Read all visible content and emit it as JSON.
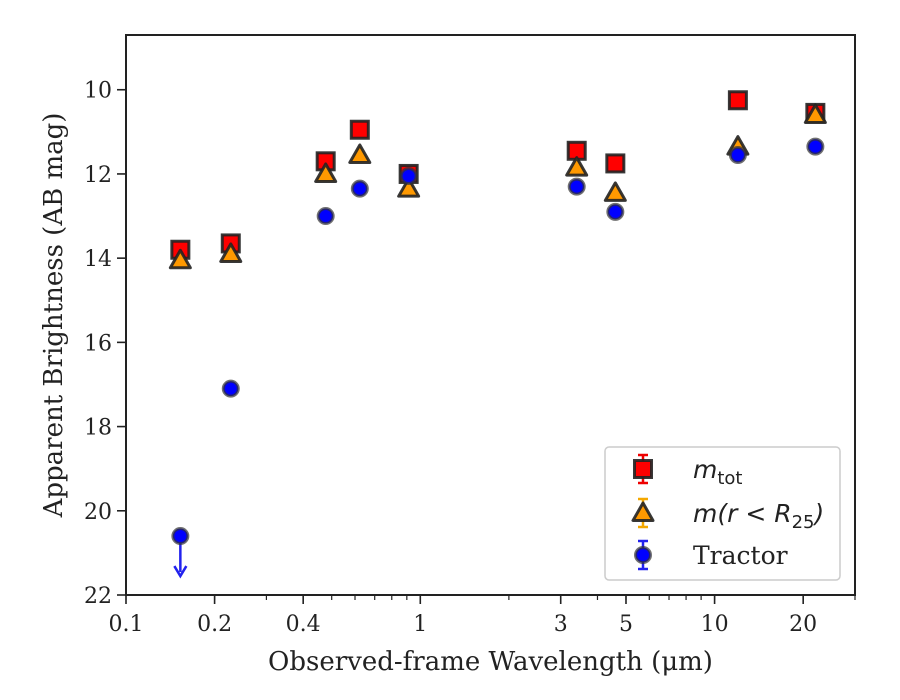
{
  "chart_data": {
    "type": "scatter",
    "xlabel": "Observed-frame Wavelength (μm)",
    "ylabel": "Apparent Brightness (AB mag)",
    "xscale": "log",
    "xlim": [
      0.1,
      30
    ],
    "ylim": [
      22,
      8.7
    ],
    "y_inverted": true,
    "grid": false,
    "legend_position": "bottom-right",
    "x_tick_labels": [
      "0.1",
      "0.2",
      "0.4",
      "1",
      "3",
      "5",
      "10",
      "20"
    ],
    "x_ticks": [
      0.1,
      0.2,
      0.4,
      1,
      3,
      5,
      10,
      20
    ],
    "y_ticks": [
      10,
      12,
      14,
      16,
      18,
      20,
      22
    ],
    "y_tick_labels": [
      "10",
      "12",
      "14",
      "16",
      "18",
      "20",
      "22"
    ],
    "series": [
      {
        "key": "mtot",
        "legend_label": "m_tot",
        "legend_math_base": "m",
        "legend_math_sub": "tot",
        "marker": "square",
        "color": "#ff0000",
        "x": [
          0.153,
          0.227,
          0.477,
          0.623,
          0.913,
          3.4,
          4.6,
          12.0,
          22.0
        ],
        "y": [
          13.8,
          13.65,
          11.7,
          10.95,
          12.0,
          11.45,
          11.75,
          10.25,
          10.55
        ]
      },
      {
        "key": "mr25",
        "legend_label": "m(r < R25)",
        "legend_math_base": "m(r < R",
        "legend_math_sub": "25",
        "legend_math_tail": ")",
        "marker": "triangle",
        "color": "#ff9900",
        "x": [
          0.153,
          0.227,
          0.477,
          0.623,
          0.913,
          3.4,
          4.6,
          12.0,
          22.0
        ],
        "y": [
          14.05,
          13.9,
          12.0,
          11.55,
          12.35,
          11.85,
          12.45,
          11.35,
          10.6
        ]
      },
      {
        "key": "tractor",
        "legend_label": "Tractor",
        "marker": "circle",
        "color": "#0000ff",
        "x": [
          0.153,
          0.227,
          0.477,
          0.623,
          0.913,
          3.4,
          4.6,
          12.0,
          22.0
        ],
        "y": [
          20.6,
          17.1,
          13.0,
          12.35,
          12.05,
          12.3,
          12.9,
          11.55,
          11.35
        ],
        "upper_limit_x": 0.153,
        "upper_limit_y": 20.6
      }
    ]
  }
}
